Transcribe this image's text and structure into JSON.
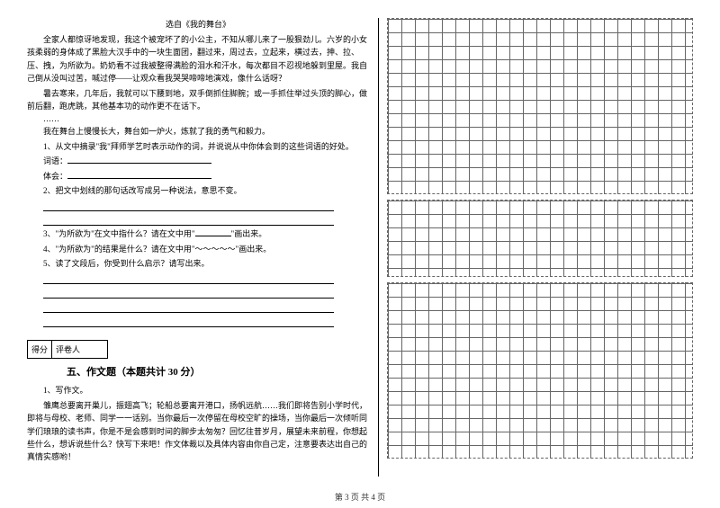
{
  "article": {
    "source": "选自《我的舞台》",
    "p1": "全家人都惊讶地发现，我这个被宠坏了的小公主，不知从哪儿来了一股狠劲儿。六岁的小女孩柔弱的身体成了黑脸大汉手中的一块生面团，翻过来，周过去，立起来，横过去，抻、拉、压、拽，为所欲为。奶奶看不过我被整得满脸的泪水和汗水，每次都目不忍视地躲到里屋。我自己倒从没叫过苦，喊过停——让观众看我哭哭啼啼地演戏，像什么话呀？",
    "p2": "暑去寒来，几年后，我就可以下腰到地，双手倒抓住脚腕；或一手抓住举过头顶的脚心，做前后翻，跑虎跳，其他基本功的动作更不在话下。",
    "dots1": "……",
    "p3": "我在舞台上慢慢长大，舞台如一炉火，炼就了我的勇气和毅力。",
    "q1": "1、从文中摘录\"我\"拜师学艺时表示动作的词，并说说从中你体会到的这些词语的好处。",
    "q1_label1": "词语：",
    "q1_label2": "体会：",
    "q2": "2、把文中划线的那句话改写成另一种说法，意思不变。",
    "q3_a": "3、\"为所欲为\"在文中指什么？请在文中用\"",
    "q3_b": "\"画出来。",
    "q4_a": "4、\"为所欲为\"的结果是什么？请在文中用\"",
    "q4_wave": "～～～～～",
    "q4_b": "\"画出来。",
    "q5": "5、读了文段后，你受到什么启示？请写出来。"
  },
  "score": {
    "col1": "得分",
    "col2": "评卷人"
  },
  "section5": {
    "title": "五、作文题（本题共计 30 分）",
    "q_num": "1、写作文。",
    "body": "雏鹰总要离开巢儿，振翅高飞；轮船总要离开港口，扬帆远航……我们即将告别小学时代，即将与母校、老师、同学一一话别。当你最后一次停留在母校空旷的操场，当你最后一次倾听同学们琅琅的读书声，你是不是会感到时间的脚步太匆匆？回忆往昔岁月，展望未来前程，你想起些什么，想诉说些什么？快写下来吧！作文体裁以及具体内容由你自己定，注意要表达出自己的真情实感哟！"
  },
  "footer": "第 3 页 共 4 页",
  "style": {
    "bg": "#ffffff",
    "text_color": "#000000",
    "font_size_body": 9,
    "font_size_section": 11,
    "grid_cell": 15,
    "grid_color": "#666666"
  }
}
